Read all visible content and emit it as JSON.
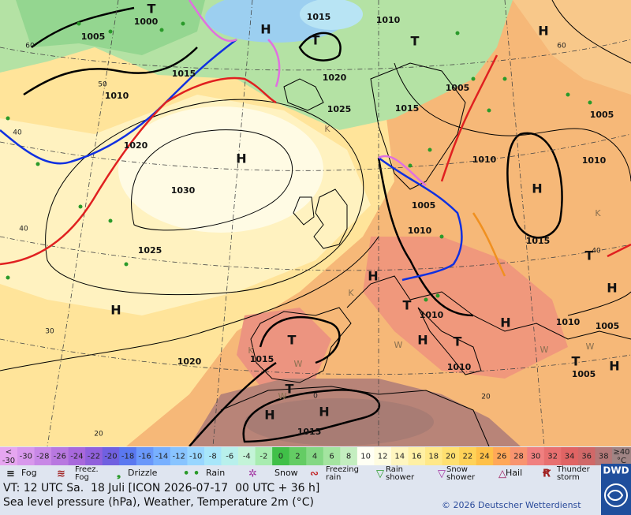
{
  "map": {
    "isobar_labels": [
      "1000",
      "1005",
      "1015",
      "1010",
      "1015",
      "1010",
      "1020",
      "1025",
      "1015",
      "1005",
      "1005",
      "1020",
      "1010",
      "1010",
      "1030",
      "1005",
      "1010",
      "1015",
      "1025",
      "1010",
      "1010",
      "1005",
      "1015",
      "1020",
      "1010",
      "1005",
      "1015"
    ],
    "pressure_centers": [
      "T",
      "H",
      "T",
      "T",
      "H",
      "H",
      "H",
      "H",
      "T",
      "H",
      "H",
      "T",
      "T",
      "H",
      "T",
      "H",
      "T",
      "H",
      "T",
      "H",
      "H"
    ],
    "grid_labels": [
      "60",
      "50",
      "40",
      "40",
      "30",
      "20",
      "60",
      "40",
      "20",
      "0"
    ],
    "weather_letters": [
      "K",
      "K",
      "K",
      "K",
      "W",
      "W",
      "W",
      "W",
      "W"
    ]
  },
  "color_scale": {
    "first_label": [
      "<",
      "-30"
    ],
    "values": [
      -30,
      -28,
      -26,
      -24,
      -22,
      -20,
      -18,
      -16,
      -14,
      -12,
      -10,
      -8,
      -6,
      -4,
      -2,
      0,
      2,
      4,
      6,
      8,
      10,
      12,
      14,
      16,
      18,
      20,
      22,
      24,
      26,
      28,
      30,
      32,
      34,
      36,
      38
    ],
    "last_label": [
      "≥40",
      "°C"
    ],
    "first_color": "#e6a6f0",
    "colors": [
      "#d898ec",
      "#c888e6",
      "#b878e0",
      "#a868dc",
      "#9060dc",
      "#7060e0",
      "#5a78f0",
      "#6a98fa",
      "#78b0ff",
      "#88c4ff",
      "#98d6ff",
      "#a8e6fa",
      "#b8f0ec",
      "#c4f4d8",
      "#a8ecb0",
      "#40c048",
      "#64cc64",
      "#84d884",
      "#a4e4a0",
      "#c4eec0",
      "#fffff4",
      "#fffce0",
      "#fff6c0",
      "#fff0a4",
      "#ffe888",
      "#ffe070",
      "#ffd258",
      "#ffc048",
      "#ffa858",
      "#f89470",
      "#f08080",
      "#e87070",
      "#e06464",
      "#d06868",
      "#b47878"
    ],
    "last_color": "#a08484"
  },
  "legend": [
    [
      "Fog"
    ],
    [
      "Freez.",
      "Fog"
    ],
    [
      "Drizzle"
    ],
    [
      "Rain"
    ],
    [
      "Snow"
    ],
    [
      "Freezing",
      "rain"
    ],
    [
      "Rain",
      "shower"
    ],
    [
      "Snow",
      "shower"
    ],
    [
      "Hail"
    ],
    [
      "Thunder",
      "storm"
    ]
  ],
  "footer": {
    "valid_time": "VT: 12 UTC Sa.  18 Juli [ICON 2026-07-17  00 UTC + 36 h]",
    "description": "Sea level pressure (hPa), Weather, Temperature 2m (°C)",
    "copyright": "© 2026 Deutscher Wetterdienst",
    "logo": "DWD"
  }
}
